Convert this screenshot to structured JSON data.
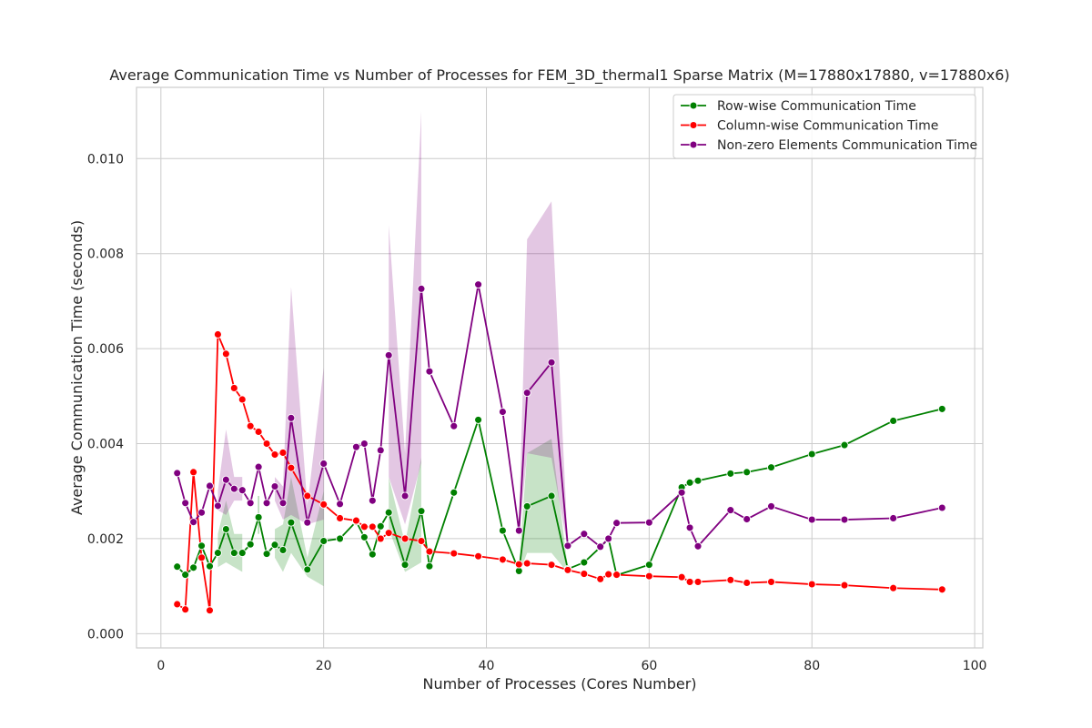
{
  "chart_data": {
    "type": "line",
    "title": "Average Communication Time vs Number of Processes for FEM_3D_thermal1 Sparse Matrix (M=17880x17880, v=17880x6)",
    "xlabel": "Number of Processes (Cores Number)",
    "ylabel": "Average Communication Time (seconds)",
    "xlim": [
      -3,
      101
    ],
    "ylim": [
      -0.0003,
      0.0115
    ],
    "xticks": [
      0,
      20,
      40,
      60,
      80,
      100
    ],
    "xtick_labels": [
      "0",
      "20",
      "40",
      "60",
      "80",
      "100"
    ],
    "yticks": [
      0.0,
      0.002,
      0.004,
      0.006,
      0.008,
      0.01
    ],
    "ytick_labels": [
      "0.000",
      "0.002",
      "0.004",
      "0.006",
      "0.008",
      "0.010"
    ],
    "grid": true,
    "legend_position": "top-right",
    "series": [
      {
        "name": "Row-wise Communication Time",
        "color": "#008000",
        "marker": "circle",
        "points": [
          [
            2,
            0.00141
          ],
          [
            3,
            0.00124
          ],
          [
            4,
            0.00139
          ],
          [
            5,
            0.00185
          ],
          [
            6,
            0.00142
          ],
          [
            7,
            0.0017
          ],
          [
            8,
            0.0022
          ],
          [
            9,
            0.0017
          ],
          [
            10,
            0.0017
          ],
          [
            11,
            0.00188
          ],
          [
            12,
            0.00245
          ],
          [
            13,
            0.00168
          ],
          [
            14,
            0.00187
          ],
          [
            15,
            0.00176
          ],
          [
            16,
            0.00234
          ],
          [
            18,
            0.00135
          ],
          [
            20,
            0.00195
          ],
          [
            22,
            0.002
          ],
          [
            24,
            0.00236
          ],
          [
            25,
            0.00203
          ],
          [
            26,
            0.00167
          ],
          [
            27,
            0.00226
          ],
          [
            28,
            0.00255
          ],
          [
            30,
            0.00145
          ],
          [
            32,
            0.00258
          ],
          [
            33,
            0.00142
          ],
          [
            36,
            0.00297
          ],
          [
            39,
            0.0045
          ],
          [
            42,
            0.00217
          ],
          [
            44,
            0.00132
          ],
          [
            45,
            0.00268
          ],
          [
            48,
            0.0029
          ],
          [
            50,
            0.00136
          ],
          [
            52,
            0.0015
          ],
          [
            54,
            0.00182
          ],
          [
            55,
            0.002
          ],
          [
            56,
            0.00123
          ],
          [
            60,
            0.00145
          ],
          [
            64,
            0.00308
          ],
          [
            65,
            0.00318
          ],
          [
            66,
            0.00322
          ],
          [
            70,
            0.00337
          ],
          [
            72,
            0.0034
          ],
          [
            75,
            0.0035
          ],
          [
            80,
            0.00378
          ],
          [
            84,
            0.00397
          ],
          [
            90,
            0.00448
          ],
          [
            96,
            0.00473
          ]
        ],
        "band": [
          [
            7,
            0.0014,
            0.0021
          ],
          [
            8,
            0.0015,
            0.0028
          ],
          [
            9,
            0.0014,
            0.0021
          ],
          [
            10,
            0.0013,
            0.0021
          ],
          [
            12,
            0.0021,
            0.0029
          ],
          [
            14,
            0.0016,
            0.0022
          ],
          [
            15,
            0.0013,
            0.0023
          ],
          [
            16,
            0.0017,
            0.0033
          ],
          [
            18,
            0.0012,
            0.0016
          ],
          [
            20,
            0.001,
            0.003
          ],
          [
            28,
            0.0022,
            0.0033
          ],
          [
            30,
            0.0013,
            0.0019
          ],
          [
            32,
            0.0015,
            0.0037
          ],
          [
            44,
            0.00125,
            0.0014
          ],
          [
            45,
            0.0017,
            0.0038
          ],
          [
            48,
            0.0017,
            0.0041
          ],
          [
            50,
            0.00128,
            0.0014
          ]
        ]
      },
      {
        "name": "Column-wise Communication Time",
        "color": "#ff0000",
        "marker": "circle",
        "points": [
          [
            2,
            0.00062
          ],
          [
            3,
            0.00051
          ],
          [
            4,
            0.0034
          ],
          [
            5,
            0.0016
          ],
          [
            6,
            0.00049
          ],
          [
            7,
            0.0063
          ],
          [
            8,
            0.00589
          ],
          [
            9,
            0.00517
          ],
          [
            10,
            0.00493
          ],
          [
            11,
            0.00437
          ],
          [
            12,
            0.00425
          ],
          [
            13,
            0.004
          ],
          [
            14,
            0.00377
          ],
          [
            15,
            0.00381
          ],
          [
            16,
            0.00349
          ],
          [
            18,
            0.0029
          ],
          [
            20,
            0.00272
          ],
          [
            22,
            0.00243
          ],
          [
            24,
            0.00238
          ],
          [
            25,
            0.00225
          ],
          [
            26,
            0.00225
          ],
          [
            27,
            0.002
          ],
          [
            28,
            0.00212
          ],
          [
            30,
            0.002
          ],
          [
            32,
            0.00195
          ],
          [
            33,
            0.00173
          ],
          [
            36,
            0.00169
          ],
          [
            39,
            0.00163
          ],
          [
            42,
            0.00156
          ],
          [
            44,
            0.00146
          ],
          [
            45,
            0.00148
          ],
          [
            48,
            0.00145
          ],
          [
            50,
            0.00134
          ],
          [
            52,
            0.00126
          ],
          [
            54,
            0.00115
          ],
          [
            55,
            0.00125
          ],
          [
            56,
            0.00124
          ],
          [
            60,
            0.00121
          ],
          [
            64,
            0.00119
          ],
          [
            65,
            0.00109
          ],
          [
            66,
            0.00109
          ],
          [
            70,
            0.00113
          ],
          [
            72,
            0.00107
          ],
          [
            75,
            0.00109
          ],
          [
            80,
            0.00104
          ],
          [
            84,
            0.00102
          ],
          [
            90,
            0.00096
          ],
          [
            96,
            0.00093
          ]
        ],
        "band": []
      },
      {
        "name": "Non-zero Elements Communication Time",
        "color": "#800080",
        "marker": "circle",
        "points": [
          [
            2,
            0.00338
          ],
          [
            3,
            0.00275
          ],
          [
            4,
            0.00235
          ],
          [
            5,
            0.00255
          ],
          [
            6,
            0.00311
          ],
          [
            7,
            0.00269
          ],
          [
            8,
            0.00324
          ],
          [
            9,
            0.00305
          ],
          [
            10,
            0.00302
          ],
          [
            11,
            0.00275
          ],
          [
            12,
            0.00351
          ],
          [
            13,
            0.00275
          ],
          [
            14,
            0.0031
          ],
          [
            15,
            0.00275
          ],
          [
            16,
            0.00454
          ],
          [
            18,
            0.00234
          ],
          [
            20,
            0.00358
          ],
          [
            22,
            0.00273
          ],
          [
            24,
            0.00393
          ],
          [
            25,
            0.004
          ],
          [
            26,
            0.0028
          ],
          [
            27,
            0.00386
          ],
          [
            28,
            0.00586
          ],
          [
            30,
            0.0029
          ],
          [
            32,
            0.00726
          ],
          [
            33,
            0.00552
          ],
          [
            36,
            0.00437
          ],
          [
            39,
            0.00735
          ],
          [
            42,
            0.00467
          ],
          [
            44,
            0.00217
          ],
          [
            45,
            0.00507
          ],
          [
            48,
            0.00571
          ],
          [
            50,
            0.00185
          ],
          [
            52,
            0.0021
          ],
          [
            54,
            0.00183
          ],
          [
            55,
            0.002
          ],
          [
            56,
            0.00233
          ],
          [
            60,
            0.00234
          ],
          [
            64,
            0.00297
          ],
          [
            65,
            0.00223
          ],
          [
            66,
            0.00184
          ],
          [
            70,
            0.0026
          ],
          [
            72,
            0.00241
          ],
          [
            75,
            0.00268
          ],
          [
            80,
            0.0024
          ],
          [
            84,
            0.0024
          ],
          [
            90,
            0.00243
          ],
          [
            96,
            0.00265
          ]
        ],
        "band": [
          [
            7,
            0.0026,
            0.003
          ],
          [
            8,
            0.0025,
            0.0043
          ],
          [
            9,
            0.0028,
            0.0033
          ],
          [
            10,
            0.0028,
            0.0033
          ],
          [
            14,
            0.0028,
            0.0033
          ],
          [
            15,
            0.0024,
            0.0031
          ],
          [
            16,
            0.0025,
            0.0073
          ],
          [
            18,
            0.0023,
            0.0027
          ],
          [
            20,
            0.0024,
            0.0056
          ],
          [
            28,
            0.0033,
            0.0086
          ],
          [
            30,
            0.0023,
            0.0038
          ],
          [
            32,
            0.0036,
            0.011
          ],
          [
            44,
            0.002,
            0.0023
          ],
          [
            45,
            0.0038,
            0.0083
          ],
          [
            48,
            0.0037,
            0.0091
          ],
          [
            50,
            0.0018,
            0.0019
          ]
        ]
      }
    ],
    "legend": [
      "Row-wise Communication Time",
      "Column-wise Communication Time",
      "Non-zero Elements Communication Time"
    ]
  }
}
